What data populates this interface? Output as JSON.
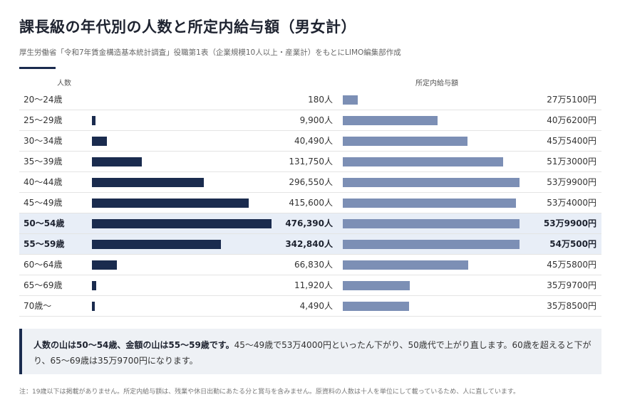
{
  "title": "課長級の年代別の人数と所定内給与額（男女計）",
  "subtitle": "厚生労働省「令和7年賃金構造基本統計調査」役職第1表（企業規模10人以上・産業計）をもとにLIMO編集部作成",
  "colors": {
    "accent": "#1a2b4e",
    "count_bar": "#1a2b4e",
    "salary_bar": "#7c8fb5",
    "highlight_row": "#e8eef7"
  },
  "chart_data": {
    "type": "table",
    "column_headers": {
      "count": "人数",
      "salary": "所定内給与額"
    },
    "count_max": 476390,
    "salary_range": [
      250000,
      545000
    ],
    "rows": [
      {
        "age": "20～24歳",
        "count_label": "180人",
        "count": 180,
        "salary_label": "27万5100円",
        "salary": 275100,
        "highlight": false
      },
      {
        "age": "25～29歳",
        "count_label": "9,900人",
        "count": 9900,
        "salary_label": "40万6200円",
        "salary": 406200,
        "highlight": false
      },
      {
        "age": "30～34歳",
        "count_label": "40,490人",
        "count": 40490,
        "salary_label": "45万5400円",
        "salary": 455400,
        "highlight": false
      },
      {
        "age": "35～39歳",
        "count_label": "131,750人",
        "count": 131750,
        "salary_label": "51万3000円",
        "salary": 513000,
        "highlight": false
      },
      {
        "age": "40～44歳",
        "count_label": "296,550人",
        "count": 296550,
        "salary_label": "53万9900円",
        "salary": 539900,
        "highlight": false
      },
      {
        "age": "45～49歳",
        "count_label": "415,600人",
        "count": 415600,
        "salary_label": "53万4000円",
        "salary": 534000,
        "highlight": false
      },
      {
        "age": "50～54歳",
        "count_label": "476,390人",
        "count": 476390,
        "salary_label": "53万9900円",
        "salary": 539900,
        "highlight": true
      },
      {
        "age": "55～59歳",
        "count_label": "342,840人",
        "count": 342840,
        "salary_label": "54万500円",
        "salary": 540500,
        "highlight": true
      },
      {
        "age": "60～64歳",
        "count_label": "66,830人",
        "count": 66830,
        "salary_label": "45万5800円",
        "salary": 455800,
        "highlight": false
      },
      {
        "age": "65～69歳",
        "count_label": "11,920人",
        "count": 11920,
        "salary_label": "35万9700円",
        "salary": 359700,
        "highlight": false
      },
      {
        "age": "70歳～",
        "count_label": "4,490人",
        "count": 4490,
        "salary_label": "35万8500円",
        "salary": 358500,
        "highlight": false
      }
    ]
  },
  "note": {
    "bold": "人数の山は50～54歳、金額の山は55～59歳です。",
    "text": "45～49歳で53万4000円といったん下がり、50歳代で上がり直します。60歳を超えると下がり、65～69歳は35万9700円になります。"
  },
  "footnote": "注：19歳以下は掲載がありません。所定内給与額は、残業や休日出勤にあたる分と賞与を含みません。原資料の人数は十人を単位にして載っているため、人に直しています。"
}
